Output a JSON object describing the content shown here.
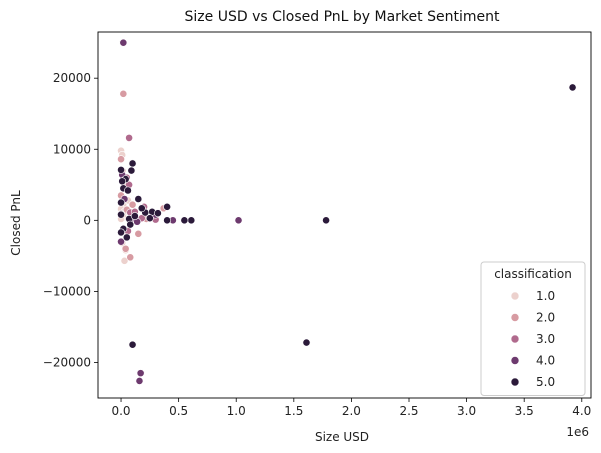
{
  "chart_data": {
    "type": "scatter",
    "title": "Size USD vs Closed PnL by Market Sentiment",
    "xlabel": "Size USD",
    "ylabel": "Closed PnL",
    "x_offset_text": "1e6",
    "xlim": [
      -0.2,
      4.08
    ],
    "ylim": [
      -25000,
      26500
    ],
    "xticks": [
      0.0,
      0.5,
      1.0,
      1.5,
      2.0,
      2.5,
      3.0,
      3.5,
      4.0
    ],
    "xtick_labels": [
      "0.0",
      "0.5",
      "1.0",
      "1.5",
      "2.0",
      "2.5",
      "3.0",
      "3.5",
      "4.0"
    ],
    "yticks": [
      -20000,
      -10000,
      0,
      10000,
      20000
    ],
    "ytick_labels": [
      "−20000",
      "−10000",
      "0",
      "10000",
      "20000"
    ],
    "grid": false,
    "legend": {
      "title": "classification",
      "placement": "lower-right"
    },
    "series": [
      {
        "name": "1.0",
        "color": "#ecd1cd",
        "points": [
          [
            0.0,
            9800
          ],
          [
            0.01,
            9200
          ],
          [
            0.01,
            3000
          ],
          [
            0.02,
            2300
          ],
          [
            0.0,
            1600
          ],
          [
            0.03,
            1200
          ],
          [
            0.02,
            400
          ],
          [
            0.05,
            -2000
          ],
          [
            0.04,
            -4200
          ],
          [
            0.03,
            -5700
          ],
          [
            0.01,
            -3200
          ],
          [
            0.06,
            2800
          ],
          [
            0.0,
            200
          ]
        ]
      },
      {
        "name": "2.0",
        "color": "#d79ba2",
        "points": [
          [
            0.02,
            17800
          ],
          [
            0.0,
            8600
          ],
          [
            0.01,
            7000
          ],
          [
            0.03,
            4800
          ],
          [
            0.0,
            3500
          ],
          [
            0.05,
            1500
          ],
          [
            0.08,
            -5200
          ],
          [
            0.04,
            -4000
          ],
          [
            0.15,
            -1900
          ],
          [
            0.37,
            1700
          ],
          [
            0.22,
            200
          ],
          [
            0.1,
            2200
          ]
        ]
      },
      {
        "name": "3.0",
        "color": "#b06a8d",
        "points": [
          [
            0.07,
            11600
          ],
          [
            0.05,
            6000
          ],
          [
            0.07,
            5000
          ],
          [
            0.08,
            1100
          ],
          [
            0.12,
            1200
          ],
          [
            0.18,
            300
          ],
          [
            0.3,
            100
          ],
          [
            0.2,
            1900
          ],
          [
            0.06,
            -1500
          ]
        ]
      },
      {
        "name": "4.0",
        "color": "#6d3a6e",
        "points": [
          [
            0.02,
            25000
          ],
          [
            0.01,
            6400
          ],
          [
            0.0,
            -3000
          ],
          [
            0.03,
            3000
          ],
          [
            0.16,
            -22600
          ],
          [
            0.17,
            -21500
          ],
          [
            1.02,
            0
          ],
          [
            0.45,
            0
          ],
          [
            0.3,
            800
          ],
          [
            0.0,
            900
          ],
          [
            0.09,
            200
          ],
          [
            0.14,
            -200
          ]
        ]
      },
      {
        "name": "5.0",
        "color": "#2b1a3a",
        "points": [
          [
            3.92,
            18700
          ],
          [
            1.78,
            0
          ],
          [
            1.61,
            -17200
          ],
          [
            0.1,
            -17500
          ],
          [
            0.61,
            0
          ],
          [
            0.55,
            0
          ],
          [
            0.4,
            1900
          ],
          [
            0.4,
            0
          ],
          [
            0.27,
            1200
          ],
          [
            0.21,
            1100
          ],
          [
            0.15,
            3000
          ],
          [
            0.1,
            8000
          ],
          [
            0.09,
            7000
          ],
          [
            0.04,
            5800
          ],
          [
            0.02,
            4500
          ],
          [
            0.06,
            4200
          ],
          [
            0.0,
            7100
          ],
          [
            0.01,
            5500
          ],
          [
            0.0,
            2500
          ],
          [
            0.0,
            800
          ],
          [
            0.02,
            -1200
          ],
          [
            0.07,
            200
          ],
          [
            0.12,
            600
          ],
          [
            0.18,
            1700
          ],
          [
            0.25,
            300
          ],
          [
            0.32,
            1000
          ],
          [
            0.08,
            -600
          ],
          [
            0.05,
            -2400
          ],
          [
            0.0,
            -1700
          ]
        ]
      }
    ]
  }
}
